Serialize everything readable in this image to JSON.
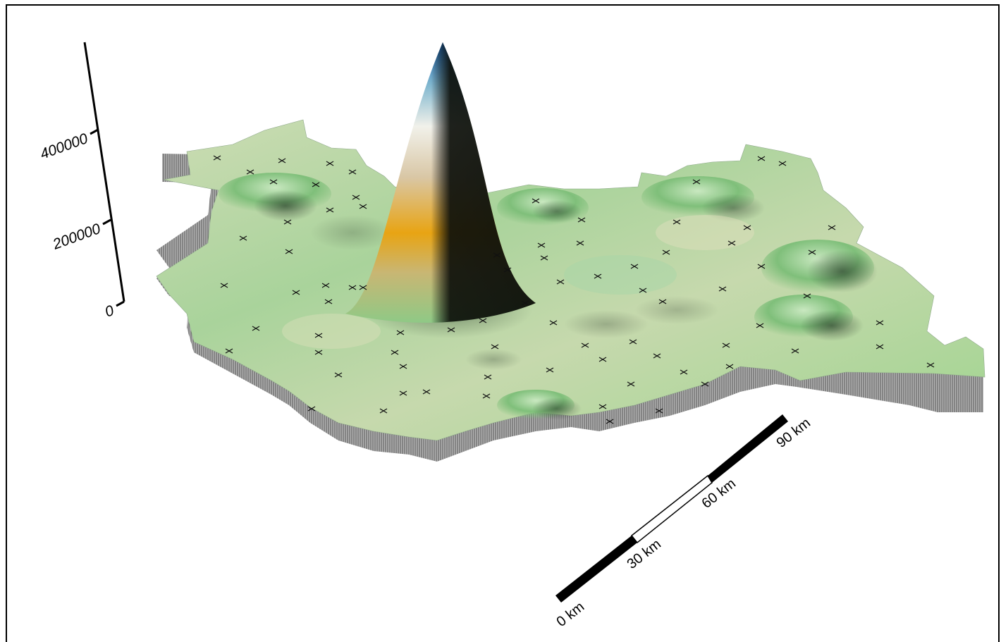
{
  "map": {
    "type": "3d-surface-map",
    "colors": {
      "surface_low": "#9ccf8f",
      "surface_mid": "#c9dcb0",
      "surface_shadow": "#27402a",
      "peak_orange": "#e8a413",
      "peak_white": "#f1f1ea",
      "peak_blue": "#1a63b0",
      "wall_gray": "#9d9d9d"
    }
  },
  "z_axis": {
    "ticks": [
      "0",
      "200000",
      "400000"
    ]
  },
  "scale_bar": {
    "labels": [
      "0 km",
      "30 km",
      "60 km",
      "90 km"
    ]
  }
}
